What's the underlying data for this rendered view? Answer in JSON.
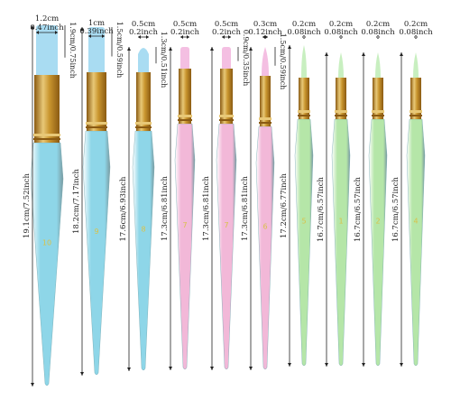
{
  "brushes": [
    {
      "handle_color": "#8ed6e8",
      "head_width_label": "1.2cm",
      "head_width_label2": "0.47inch",
      "head_len_label": "1.9cm/0.75inch",
      "total_label": "19.1cm/7.52inch",
      "number": "10"
    },
    {
      "handle_color": "#8ed6e8",
      "head_width_label": "1cm",
      "head_width_label2": "0.39inch",
      "head_len_label": "1.5cm/0.59inch",
      "total_label": "18.2cm/7.17inch",
      "number": "9"
    },
    {
      "handle_color": "#8ed6e8",
      "head_width_label": "0.5cm",
      "head_width_label2": "0.2inch",
      "head_len_label": "1.3cm/0.51inch",
      "total_label": "17.6cm/6.93inch",
      "number": "8"
    },
    {
      "handle_color": "#f2b8d8",
      "head_width_label": "0.5cm",
      "head_width_label2": "0.2inch",
      "head_len_label": "",
      "total_label": "17.3cm/6.81inch",
      "number": "7"
    },
    {
      "handle_color": "#f2b8d8",
      "head_width_label": "0.5cm",
      "head_width_label2": "0.2inch",
      "head_len_label": "0.9cm/0.35inch",
      "total_label": "17.3cm/6.81inch",
      "number": "7"
    },
    {
      "handle_color": "#f2b8d8",
      "head_width_label": "0.3cm",
      "head_width_label2": "0.12inch",
      "head_len_label": "1.5cm/0.59inch",
      "total_label": "17.3cm/6.81inch",
      "number": "6"
    },
    {
      "handle_color": "#b5e6a8",
      "head_width_label": "0.2cm",
      "head_width_label2": "0.08inch",
      "head_len_label": "",
      "total_label": "17.2cm/6.77inch",
      "number": "5"
    },
    {
      "handle_color": "#b5e6a8",
      "head_width_label": "0.2cm",
      "head_width_label2": "0.08inch",
      "head_len_label": "",
      "total_label": "16.7cm/6.57inch",
      "number": "1"
    },
    {
      "handle_color": "#b5e6a8",
      "head_width_label": "0.2cm",
      "head_width_label2": "0.08inch",
      "head_len_label": "",
      "total_label": "16.7cm/6.57inch",
      "number": "2"
    },
    {
      "handle_color": "#b5e6a8",
      "head_width_label": "0.2cm",
      "head_width_label2": "0.08inch",
      "head_len_label": "",
      "total_label": "16.7cm/6.57inch",
      "number": "4"
    }
  ],
  "colors": {
    "bristle_blue": "#a9dcf2",
    "bristle_pink": "#f4bfe2",
    "bristle_green": "#c8efc0",
    "ferrule": "#c9952e",
    "ferrule_dark": "#8a5a12",
    "crimp": "#e8c877"
  }
}
